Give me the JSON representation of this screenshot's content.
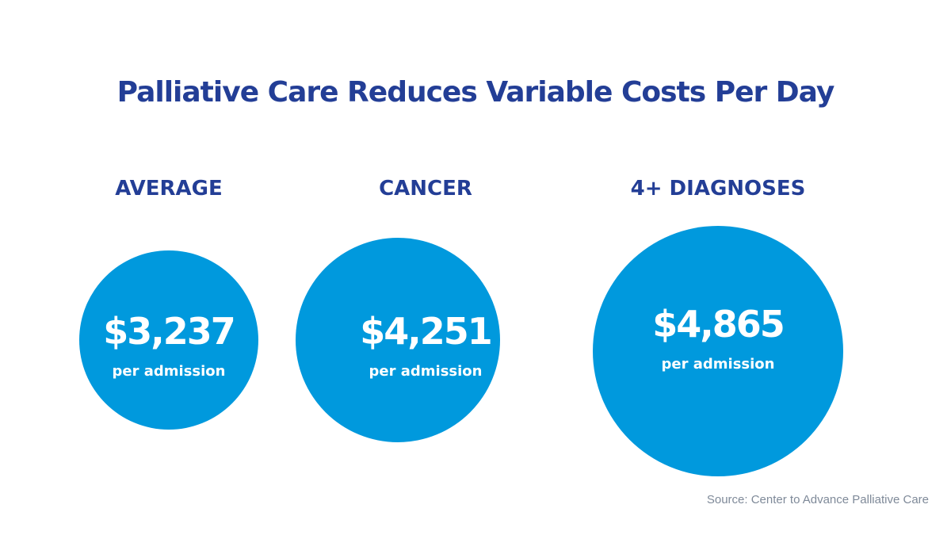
{
  "colors": {
    "title": "#233e96",
    "category_label": "#233e96",
    "bubble": "#0099dd",
    "bubble_text": "#ffffff",
    "source": "#7f8a99"
  },
  "chart_data": {
    "type": "bubble",
    "title": "Palliative Care Reduces Variable Costs Per Day",
    "categories": [
      "AVERAGE",
      "CANCER",
      "4+ DIAGNOSES"
    ],
    "values": [
      3237,
      4251,
      4865
    ],
    "value_labels": [
      "$3,237",
      "$4,251",
      "$4,865"
    ],
    "unit_label": "per admission",
    "source": "Source: Center to Advance Palliative Care"
  }
}
